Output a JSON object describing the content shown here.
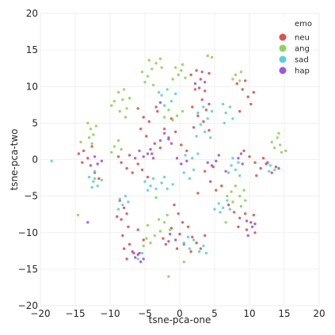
{
  "chart_data": {
    "type": "scatter",
    "xlabel": "tsne-pca-one",
    "ylabel": "tsne-pca-two",
    "xlim": [
      -20,
      20
    ],
    "ylim": [
      -20,
      20
    ],
    "x_ticks": [
      -20,
      -15,
      -10,
      -5,
      0,
      5,
      10,
      15,
      20
    ],
    "y_ticks": [
      -20,
      -15,
      -10,
      -5,
      0,
      5,
      10,
      15,
      20
    ],
    "grid": true,
    "legend": {
      "title": "emo",
      "placement": "top-right",
      "entries": [
        "neu",
        "ang",
        "sad",
        "hap"
      ]
    },
    "series": [
      {
        "name": "neu",
        "color": "#d9534f",
        "points": [
          [
            -14.5,
            0.8
          ],
          [
            -13.8,
            1.2
          ],
          [
            -13.2,
            0.2
          ],
          [
            -12.8,
            -0.8
          ],
          [
            -12.2,
            -1.8
          ],
          [
            -11.6,
            -2.6
          ],
          [
            -14.0,
            -0.4
          ],
          [
            -12.6,
            1.8
          ],
          [
            -8.6,
            -5.6
          ],
          [
            -8.0,
            -6.6
          ],
          [
            -7.6,
            -7.4
          ],
          [
            -8.4,
            -8.2
          ],
          [
            -7.4,
            -9.2
          ],
          [
            -8.2,
            -10.4
          ],
          [
            -7.2,
            -11.6
          ],
          [
            -8.0,
            -12.2
          ],
          [
            -6.6,
            -12.8
          ],
          [
            -7.6,
            -13.6
          ],
          [
            -6.0,
            -13.0
          ],
          [
            -9.0,
            -7.8
          ],
          [
            -5.2,
            -11.0
          ],
          [
            -6.0,
            -9.6
          ],
          [
            -8.4,
            -0.4
          ],
          [
            -7.6,
            -1.2
          ],
          [
            -6.8,
            -1.8
          ],
          [
            -6.0,
            -0.6
          ],
          [
            -7.2,
            0.6
          ],
          [
            -5.4,
            -1.4
          ],
          [
            -4.6,
            -2.4
          ],
          [
            -8.8,
            0.4
          ],
          [
            -6.0,
            7.0
          ],
          [
            -5.2,
            5.8
          ],
          [
            -4.4,
            5.2
          ],
          [
            -5.6,
            4.2
          ],
          [
            -4.8,
            3.2
          ],
          [
            -3.6,
            2.2
          ],
          [
            -4.0,
            0.8
          ],
          [
            -2.8,
            1.6
          ],
          [
            -2.2,
            4.2
          ],
          [
            -1.2,
            5.6
          ],
          [
            -0.6,
            3.8
          ],
          [
            0.2,
            2.0
          ],
          [
            1.0,
            1.2
          ],
          [
            -1.6,
            2.8
          ],
          [
            -3.2,
            6.6
          ],
          [
            1.6,
            11.6
          ],
          [
            2.4,
            12.2
          ],
          [
            3.0,
            11.0
          ],
          [
            3.6,
            9.4
          ],
          [
            2.2,
            9.6
          ],
          [
            3.2,
            8.2
          ],
          [
            4.2,
            11.8
          ],
          [
            1.8,
            7.2
          ],
          [
            2.6,
            6.0
          ],
          [
            3.4,
            5.2
          ],
          [
            4.2,
            4.0
          ],
          [
            2.0,
            4.4
          ],
          [
            3.8,
            6.8
          ],
          [
            -0.8,
            -6.2
          ],
          [
            -0.2,
            -7.4
          ],
          [
            0.4,
            -8.6
          ],
          [
            -1.2,
            -9.4
          ],
          [
            0.0,
            -10.2
          ],
          [
            -1.6,
            -11.2
          ],
          [
            0.6,
            -11.6
          ],
          [
            -0.4,
            -12.2
          ],
          [
            1.2,
            -9.2
          ],
          [
            1.8,
            -10.6
          ],
          [
            2.4,
            -11.4
          ],
          [
            3.0,
            -12.2
          ],
          [
            1.6,
            -12.6
          ],
          [
            -2.4,
            -10.8
          ],
          [
            3.6,
            -10.4
          ],
          [
            7.0,
            -6.2
          ],
          [
            7.8,
            -7.2
          ],
          [
            8.6,
            -8.0
          ],
          [
            9.4,
            -7.4
          ],
          [
            10.2,
            -8.6
          ],
          [
            9.6,
            -9.6
          ],
          [
            10.8,
            -10.0
          ],
          [
            8.4,
            -9.2
          ],
          [
            10.6,
            -7.6
          ],
          [
            8.2,
            10.4
          ],
          [
            9.0,
            9.6
          ],
          [
            9.8,
            8.6
          ],
          [
            10.6,
            9.2
          ],
          [
            9.4,
            10.8
          ],
          [
            10.2,
            7.6
          ],
          [
            8.6,
            6.6
          ],
          [
            9.2,
            1.2
          ],
          [
            10.0,
            0.4
          ],
          [
            10.8,
            -0.4
          ],
          [
            11.6,
            -1.2
          ],
          [
            12.4,
            -0.6
          ],
          [
            13.2,
            -1.8
          ],
          [
            12.0,
            0.2
          ],
          [
            13.8,
            -1.0
          ],
          [
            11.0,
            -2.2
          ],
          [
            4.4,
            -3.0
          ],
          [
            5.2,
            -4.2
          ],
          [
            3.6,
            -1.6
          ],
          [
            4.8,
            -1.0
          ],
          [
            2.6,
            -4.6
          ],
          [
            6.0,
            -3.6
          ]
        ]
      },
      {
        "name": "ang",
        "color": "#8fd45a",
        "points": [
          [
            -4.6,
            11.4
          ],
          [
            -4.0,
            12.4
          ],
          [
            -3.4,
            13.2
          ],
          [
            -5.0,
            10.6
          ],
          [
            -3.8,
            10.2
          ],
          [
            -2.6,
            12.6
          ],
          [
            -4.4,
            13.6
          ],
          [
            -2.8,
            13.8
          ],
          [
            -5.4,
            12.0
          ],
          [
            -8.8,
            9.2
          ],
          [
            -8.2,
            8.2
          ],
          [
            -7.6,
            7.0
          ],
          [
            -9.4,
            8.0
          ],
          [
            -8.6,
            6.6
          ],
          [
            -7.8,
            5.8
          ],
          [
            -9.8,
            7.4
          ],
          [
            -8.0,
            9.6
          ],
          [
            -7.2,
            8.4
          ],
          [
            -13.2,
            5.0
          ],
          [
            -12.8,
            4.2
          ],
          [
            -12.4,
            3.4
          ],
          [
            -13.0,
            3.0
          ],
          [
            -12.6,
            2.2
          ],
          [
            -12.0,
            4.6
          ],
          [
            -14.2,
            2.4
          ],
          [
            -0.6,
            12.6
          ],
          [
            0.2,
            12.2
          ],
          [
            0.8,
            11.2
          ],
          [
            -0.2,
            11.6
          ],
          [
            0.4,
            13.0
          ],
          [
            -1.0,
            11.0
          ],
          [
            -1.0,
            5.4
          ],
          [
            -0.4,
            6.0
          ],
          [
            -1.6,
            6.8
          ],
          [
            -2.2,
            5.8
          ],
          [
            0.4,
            6.6
          ],
          [
            -9.4,
            1.8
          ],
          [
            -8.8,
            2.6
          ],
          [
            -9.8,
            1.0
          ],
          [
            -8.4,
            1.4
          ],
          [
            -4.8,
            -10.8
          ],
          [
            -4.2,
            -11.4
          ],
          [
            -3.6,
            -10.4
          ],
          [
            -5.2,
            -11.8
          ],
          [
            -2.8,
            -9.8
          ],
          [
            -2.2,
            -8.6
          ],
          [
            -1.4,
            -9.6
          ],
          [
            -3.0,
            -8.2
          ],
          [
            -1.8,
            -7.6
          ],
          [
            -4.6,
            -9.0
          ],
          [
            7.4,
            -4.4
          ],
          [
            8.0,
            -3.6
          ],
          [
            8.6,
            -5.0
          ],
          [
            7.6,
            -5.8
          ],
          [
            8.8,
            -6.4
          ],
          [
            9.4,
            -5.6
          ],
          [
            6.8,
            -5.0
          ],
          [
            9.2,
            -4.2
          ],
          [
            14.0,
            3.0
          ],
          [
            14.4,
            2.0
          ],
          [
            13.6,
            1.6
          ],
          [
            14.6,
            1.0
          ],
          [
            14.2,
            3.6
          ],
          [
            15.2,
            1.2
          ],
          [
            13.2,
            2.4
          ],
          [
            8.0,
            11.6
          ],
          [
            8.6,
            10.8
          ],
          [
            7.6,
            11.0
          ],
          [
            8.8,
            12.0
          ],
          [
            -1.6,
            -16.0
          ],
          [
            0.6,
            -14.0
          ],
          [
            -14.6,
            -7.6
          ],
          [
            4.0,
            14.2
          ],
          [
            4.6,
            14.0
          ],
          [
            -12.2,
            -2.6
          ],
          [
            -3.4,
            -5.2
          ],
          [
            6.6,
            -8.6
          ]
        ]
      },
      {
        "name": "sad",
        "color": "#5cd0d9",
        "points": [
          [
            -13.0,
            -2.4
          ],
          [
            -12.4,
            -3.0
          ],
          [
            -11.8,
            -3.6
          ],
          [
            -12.6,
            -3.8
          ],
          [
            -11.2,
            -2.8
          ],
          [
            -12.2,
            -1.6
          ],
          [
            -8.6,
            -5.4
          ],
          [
            -7.8,
            -5.0
          ],
          [
            -8.2,
            -6.2
          ],
          [
            -7.4,
            -5.8
          ],
          [
            -8.8,
            -6.8
          ],
          [
            -5.0,
            -3.0
          ],
          [
            -4.2,
            -3.6
          ],
          [
            -3.4,
            -4.0
          ],
          [
            -2.6,
            -3.2
          ],
          [
            -1.8,
            -4.0
          ],
          [
            -1.0,
            -3.4
          ],
          [
            -3.8,
            -2.6
          ],
          [
            -4.6,
            -4.2
          ],
          [
            -2.2,
            -2.4
          ],
          [
            -2.6,
            8.8
          ],
          [
            -1.8,
            9.6
          ],
          [
            -1.2,
            8.0
          ],
          [
            -2.2,
            7.4
          ],
          [
            -3.0,
            9.2
          ],
          [
            -0.6,
            9.0
          ],
          [
            2.6,
            6.4
          ],
          [
            3.4,
            7.2
          ],
          [
            4.0,
            5.6
          ],
          [
            3.0,
            4.8
          ],
          [
            4.6,
            6.6
          ],
          [
            3.6,
            3.8
          ],
          [
            2.4,
            3.2
          ],
          [
            4.4,
            3.0
          ],
          [
            0.6,
            -11.4
          ],
          [
            1.4,
            -12.2
          ],
          [
            2.0,
            -11.0
          ],
          [
            2.8,
            -12.6
          ],
          [
            1.2,
            -10.6
          ],
          [
            3.4,
            -11.8
          ],
          [
            3.8,
            -12.8
          ],
          [
            5.6,
            -6.0
          ],
          [
            6.2,
            -6.6
          ],
          [
            5.0,
            -6.8
          ],
          [
            6.8,
            -5.6
          ],
          [
            5.8,
            -7.2
          ],
          [
            7.2,
            -6.8
          ],
          [
            6.6,
            6.4
          ],
          [
            7.2,
            7.2
          ],
          [
            6.2,
            7.6
          ],
          [
            7.6,
            5.6
          ],
          [
            6.4,
            5.0
          ],
          [
            7.4,
            -0.8
          ],
          [
            8.0,
            -1.4
          ],
          [
            7.0,
            -1.8
          ],
          [
            8.4,
            -0.4
          ],
          [
            7.6,
            0.2
          ],
          [
            8.6,
            -2.2
          ],
          [
            13.0,
            -0.8
          ],
          [
            13.6,
            -1.4
          ],
          [
            12.8,
            -1.6
          ],
          [
            0.6,
            -1.8
          ],
          [
            1.4,
            -2.6
          ],
          [
            2.0,
            -1.4
          ],
          [
            0.8,
            0.6
          ],
          [
            1.8,
            0.2
          ],
          [
            2.6,
            0.8
          ],
          [
            -18.4,
            -0.2
          ],
          [
            -5.4,
            -12.8
          ],
          [
            -6.0,
            -13.6
          ]
        ]
      },
      {
        "name": "hap",
        "color": "#a158d6",
        "points": [
          [
            -5.8,
            -12.8
          ],
          [
            -6.4,
            -13.4
          ],
          [
            -5.2,
            -13.6
          ],
          [
            -6.8,
            -12.6
          ],
          [
            -5.6,
            -14.0
          ],
          [
            -5.2,
            0.4
          ],
          [
            -4.6,
            0.8
          ],
          [
            -5.8,
            1.2
          ],
          [
            -4.2,
            1.4
          ],
          [
            -6.4,
            0.2
          ],
          [
            -3.8,
            0.2
          ],
          [
            -11.8,
            -0.6
          ],
          [
            -11.2,
            -0.2
          ],
          [
            -12.2,
            0.4
          ],
          [
            -2.2,
            3.6
          ],
          [
            -1.6,
            3.0
          ],
          [
            -2.8,
            2.6
          ],
          [
            -1.2,
            2.2
          ],
          [
            2.8,
            9.8
          ],
          [
            3.6,
            10.6
          ],
          [
            2.2,
            10.4
          ],
          [
            3.2,
            12.0
          ],
          [
            4.6,
            -0.8
          ],
          [
            5.2,
            -0.2
          ],
          [
            4.0,
            -0.4
          ],
          [
            5.6,
            0.6
          ],
          [
            9.6,
            -8.4
          ],
          [
            10.4,
            -9.2
          ],
          [
            9.8,
            -10.4
          ],
          [
            10.8,
            -8.8
          ],
          [
            8.4,
            0.2
          ],
          [
            9.0,
            -0.6
          ],
          [
            8.8,
            0.8
          ],
          [
            -1.4,
            -10.2
          ],
          [
            -0.6,
            -11.0
          ],
          [
            -2.0,
            -11.6
          ],
          [
            0.2,
            -0.6
          ],
          [
            1.0,
            -0.2
          ],
          [
            -0.4,
            0.2
          ],
          [
            -3.4,
            7.2
          ],
          [
            -2.8,
            7.8
          ],
          [
            -13.2,
            -8.6
          ],
          [
            14.2,
            -1.2
          ],
          [
            12.6,
            -0.4
          ],
          [
            4.2,
            7.6
          ],
          [
            6.6,
            -1.6
          ]
        ]
      }
    ]
  }
}
